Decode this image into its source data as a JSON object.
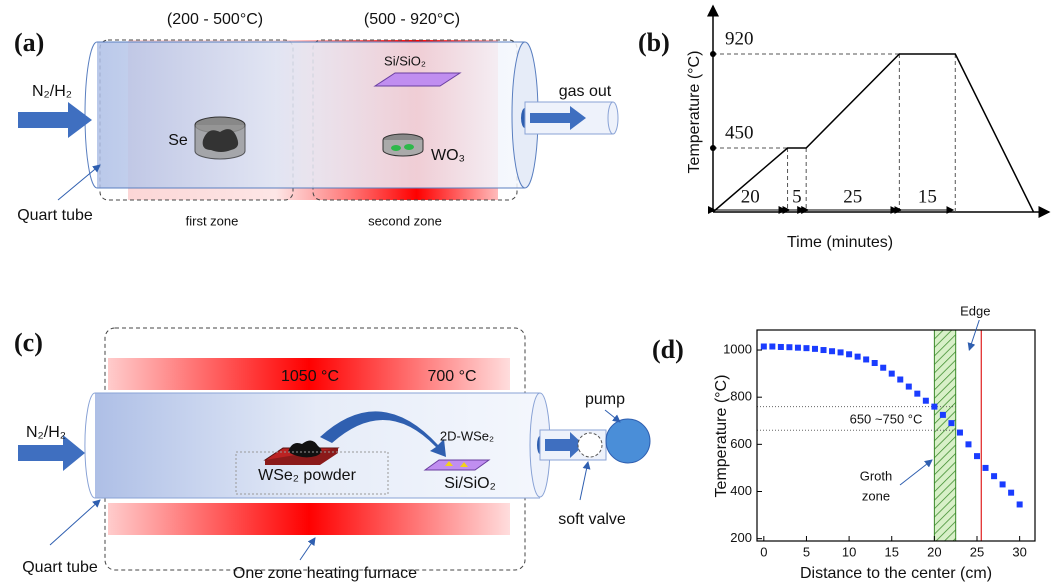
{
  "panel_a": {
    "label": "(a)",
    "zone1_temp": "(200 - 500°C)",
    "zone2_temp": "(500 - 920°C)",
    "gas_in": "N₂/H₂",
    "source": "Se",
    "substrate": "Si/SiO₂",
    "precursor": "WO₃",
    "gas_out": "gas out",
    "tube": "Quart tube",
    "zone1": "first zone",
    "zone2": "second zone"
  },
  "panel_c": {
    "label": "(c)",
    "hot_temp": "1050 °C",
    "cool_temp": "700 °C",
    "gas_in": "N₂/H₂",
    "product": "2D-WSe₂",
    "source": "WSe₂ powder",
    "substrate": "Si/SiO₂",
    "pump": "pump",
    "valve": "soft valve",
    "tube": "Quart tube",
    "furnace": "One zone heating furnace"
  },
  "chart_data": [
    {
      "type": "line",
      "panel_label": "(b)",
      "x_label": "Time (minutes)",
      "y_label": "Temperature (°C)",
      "x": [
        0,
        20,
        25,
        50,
        65,
        86
      ],
      "values": [
        130,
        450,
        450,
        920,
        920,
        130
      ],
      "color": "#000000",
      "xlim": [
        0,
        88
      ],
      "ylim": [
        130,
        1130
      ],
      "yticks": [
        450,
        920
      ],
      "segments": [
        20,
        5,
        25,
        15
      ]
    },
    {
      "type": "scatter",
      "panel_label": "(d)",
      "x_label": "Distance to the center (cm)",
      "y_label": "Temperature (°C)",
      "x": [
        0,
        1,
        2,
        3,
        4,
        5,
        6,
        7,
        8,
        9,
        10,
        11,
        12,
        13,
        14,
        15,
        16,
        17,
        18,
        19,
        20,
        21,
        22,
        23,
        24,
        25,
        26,
        27,
        28,
        29,
        30
      ],
      "values": [
        1015,
        1015,
        1013,
        1012,
        1010,
        1008,
        1005,
        1000,
        995,
        990,
        982,
        972,
        960,
        945,
        925,
        900,
        875,
        845,
        815,
        785,
        760,
        725,
        690,
        650,
        600,
        550,
        500,
        465,
        430,
        395,
        345
      ],
      "color": "#1a3cff",
      "xlim": [
        -0.8,
        31.8
      ],
      "ylim": [
        190,
        1085
      ],
      "xticks": [
        0,
        5,
        10,
        15,
        20,
        25,
        30
      ],
      "yticks": [
        200,
        400,
        600,
        800,
        1000
      ],
      "growth_zone": [
        20,
        22.5
      ],
      "growth_label": [
        "Groth",
        "zone"
      ],
      "edge_x": 25.5,
      "edge_label": "Edge",
      "range_lines": [
        760,
        660
      ],
      "range_label": "650 ~750 °C"
    }
  ]
}
